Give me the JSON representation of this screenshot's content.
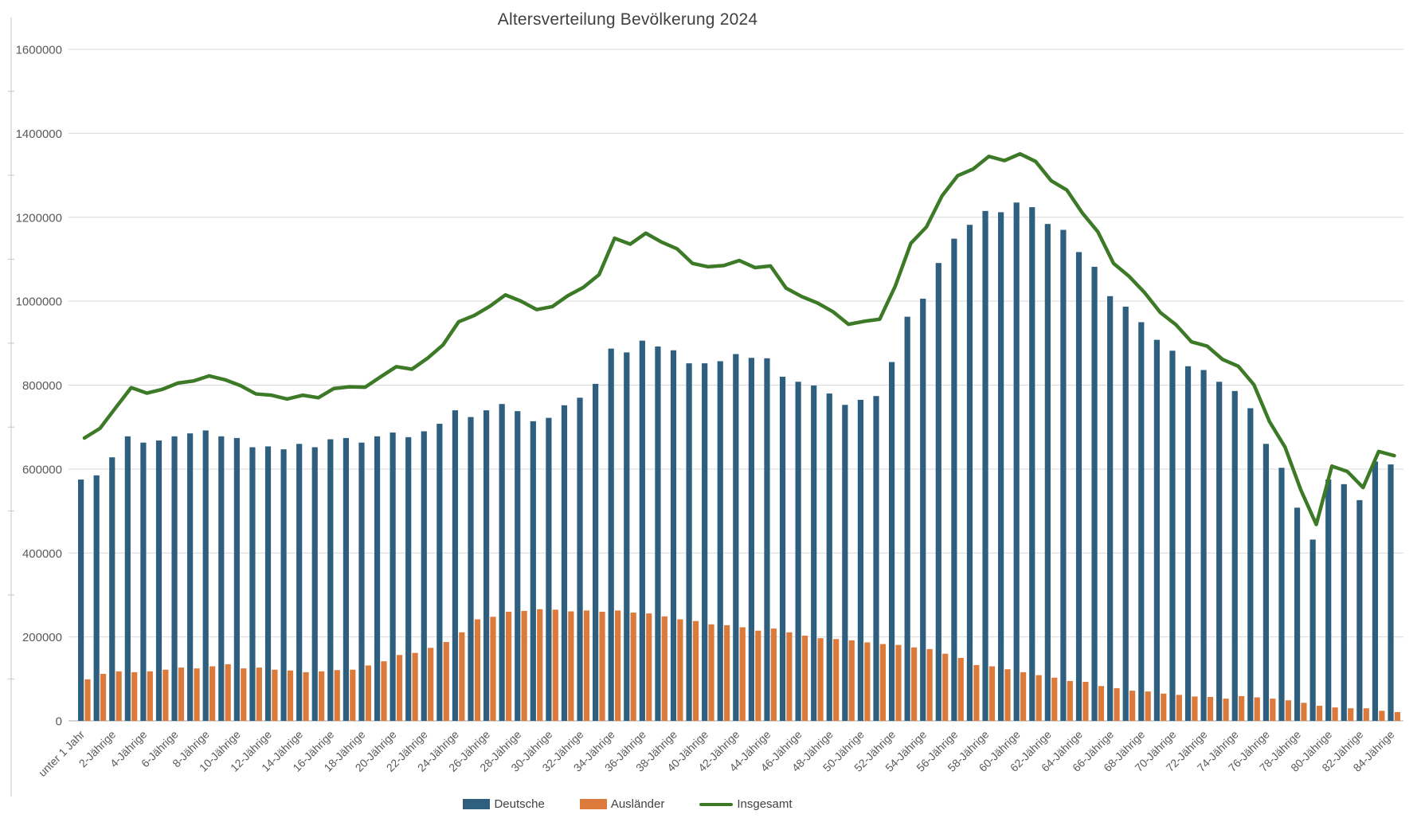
{
  "chart_data": {
    "type": "bar",
    "title": "Altersverteilung Bevölkerung 2024",
    "num_categories": 85,
    "x_label_every": 2,
    "x_tick_labels": [
      "unter 1 Jahr",
      "2-Jährige",
      "4-Jährige",
      "6-Jährige",
      "8-Jährige",
      "10-Jährige",
      "12-Jährige",
      "14-Jährige",
      "16-Jährige",
      "18-Jährige",
      "20-Jährige",
      "22-Jährige",
      "24-Jährige",
      "26-Jährige",
      "28-Jährige",
      "30-Jährige",
      "32-Jährige",
      "34-Jährige",
      "36-Jährige",
      "38-Jährige",
      "40-Jährige",
      "42-Jährige",
      "44-Jährige",
      "46-Jährige",
      "48-Jährige",
      "50-Jährige",
      "52-Jährige",
      "54-Jährige",
      "56-Jährige",
      "58-Jährige",
      "60-Jährige",
      "62-Jährige",
      "64-Jährige",
      "66-Jährige",
      "68-Jährige",
      "70-Jährige",
      "72-Jährige",
      "74-Jährige",
      "76-Jährige",
      "78-Jährige",
      "80-Jährige",
      "82-Jährige",
      "84-Jährige"
    ],
    "y_axis": {
      "min": 0,
      "max": 1600000,
      "step": 200000,
      "tick_labels": [
        "0",
        "200000",
        "400000",
        "600000",
        "800000",
        "1000000",
        "1200000",
        "1400000",
        "1600000"
      ]
    },
    "grid": true,
    "legend_position": "bottom",
    "colors": {
      "grid": "#D9D9D9",
      "axis": "#C6C6C6",
      "tick_text": "#595959",
      "title_text": "#404040"
    },
    "series": [
      {
        "name": "Deutsche",
        "type": "bar",
        "color": "#2E5F7E",
        "values": [
          575000,
          585000,
          628000,
          678000,
          663000,
          668000,
          678000,
          685000,
          692000,
          678000,
          674000,
          652000,
          654000,
          647000,
          660000,
          652000,
          671000,
          674000,
          663000,
          678000,
          687000,
          676000,
          690000,
          708000,
          740000,
          724000,
          740000,
          755000,
          738000,
          714000,
          722000,
          752000,
          770000,
          803000,
          887000,
          878000,
          906000,
          892000,
          883000,
          852000,
          852000,
          857000,
          874000,
          865000,
          864000,
          820000,
          808000,
          799000,
          780000,
          753000,
          765000,
          774000,
          855000,
          963000,
          1006000,
          1091000,
          1149000,
          1182000,
          1215000,
          1212000,
          1235000,
          1224000,
          1184000,
          1170000,
          1117000,
          1082000,
          1012000,
          987000,
          950000,
          908000,
          882000,
          845000,
          836000,
          808000,
          786000,
          745000,
          660000,
          603000,
          508000,
          432000,
          575000,
          564000,
          526000,
          618000,
          611000
        ]
      },
      {
        "name": "Ausländer",
        "type": "bar",
        "color": "#DC7A3C",
        "values": [
          99000,
          112000,
          118000,
          116000,
          118000,
          122000,
          127000,
          125000,
          130000,
          135000,
          125000,
          127000,
          122000,
          120000,
          116000,
          118000,
          121000,
          122000,
          132000,
          142000,
          157000,
          162000,
          174000,
          188000,
          211000,
          242000,
          248000,
          260000,
          262000,
          266000,
          265000,
          261000,
          263000,
          260000,
          263000,
          258000,
          256000,
          249000,
          242000,
          238000,
          230000,
          228000,
          223000,
          215000,
          220000,
          211000,
          203000,
          197000,
          195000,
          192000,
          187000,
          183000,
          181000,
          175000,
          171000,
          160000,
          150000,
          133000,
          130000,
          123000,
          116000,
          109000,
          103000,
          95000,
          93000,
          83000,
          78000,
          72000,
          70000,
          65000,
          62000,
          58000,
          57000,
          53000,
          59000,
          56000,
          53000,
          49000,
          43000,
          36000,
          32000,
          30000,
          30000,
          24000,
          21000
        ]
      },
      {
        "name": "Insgesamt",
        "type": "line",
        "color": "#3C7A27",
        "values": [
          674000,
          697000,
          746000,
          794000,
          781000,
          790000,
          805000,
          810000,
          822000,
          813000,
          799000,
          779000,
          776000,
          767000,
          776000,
          770000,
          792000,
          796000,
          795000,
          820000,
          844000,
          838000,
          864000,
          896000,
          951000,
          966000,
          988000,
          1015000,
          1000000,
          980000,
          987000,
          1013000,
          1033000,
          1063000,
          1150000,
          1136000,
          1162000,
          1141000,
          1125000,
          1090000,
          1082000,
          1085000,
          1097000,
          1080000,
          1084000,
          1031000,
          1011000,
          996000,
          975000,
          945000,
          952000,
          957000,
          1036000,
          1138000,
          1177000,
          1251000,
          1299000,
          1315000,
          1345000,
          1335000,
          1351000,
          1333000,
          1287000,
          1265000,
          1210000,
          1165000,
          1090000,
          1059000,
          1020000,
          973000,
          944000,
          903000,
          893000,
          861000,
          845000,
          801000,
          713000,
          652000,
          551000,
          468000,
          607000,
          594000,
          556000,
          642000,
          632000
        ]
      }
    ]
  }
}
